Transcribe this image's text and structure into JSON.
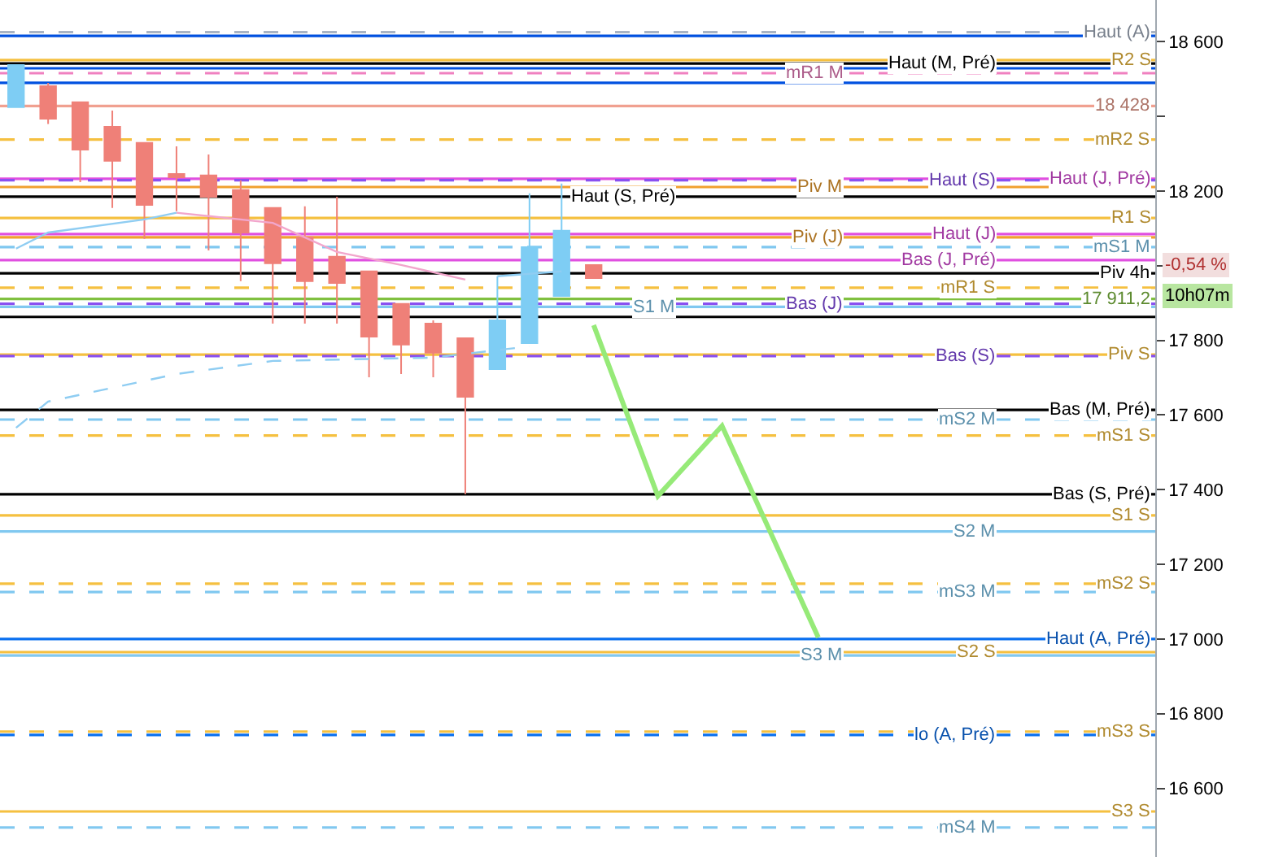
{
  "chart_data": {
    "type": "candlestick",
    "categories": [
      null,
      null,
      null,
      null,
      null,
      null,
      null,
      null,
      null,
      null,
      null,
      null,
      null,
      null,
      null,
      null,
      null,
      null,
      null,
      null,
      null,
      null,
      null,
      null,
      null,
      null,
      null,
      null,
      null,
      null,
      null,
      null,
      null,
      null,
      null,
      null
    ],
    "ohlc": [
      [
        18425,
        18538,
        18425,
        18538
      ],
      [
        18481,
        18490,
        18380,
        18394
      ],
      [
        18438,
        18440,
        18224,
        18311
      ],
      [
        18372,
        18416,
        18155,
        18281
      ],
      [
        18329,
        18329,
        18072,
        18163
      ],
      [
        18246,
        18320,
        18146,
        18237
      ],
      [
        18242,
        18298,
        18041,
        18185
      ],
      [
        18203,
        18229,
        17959,
        18089
      ],
      [
        18155,
        18155,
        17845,
        18007
      ],
      [
        18076,
        18159,
        17845,
        17959
      ],
      [
        18024,
        18185,
        17845,
        17954
      ],
      [
        17985,
        17985,
        17701,
        17810
      ],
      [
        17898,
        17898,
        17710,
        17789
      ],
      [
        17845,
        17854,
        17701,
        17767
      ],
      [
        17806,
        17806,
        17388,
        17649
      ],
      [
        17723,
        17972,
        17723,
        17854
      ],
      [
        17793,
        18194,
        17793,
        18050
      ],
      [
        17919,
        18220,
        17919,
        18094
      ],
      [
        18002,
        18002,
        17967,
        17967
      ],
      null,
      null,
      null,
      null,
      null,
      null,
      null,
      null,
      null,
      null,
      null,
      null,
      null,
      null,
      null,
      null,
      null
    ],
    "colors": [
      "#7ecdf4",
      "#ef8078",
      "#ef8078",
      "#ef8078",
      "#ef8078",
      "#ef8078",
      "#ef8078",
      "#ef8078",
      "#ef8078",
      "#ef8078",
      "#ef8078",
      "#ef8078",
      "#ef8078",
      "#ef8078",
      "#ef8078",
      "#7ecdf4",
      "#7ecdf4",
      "#7ecdf4",
      "#ef8078",
      null,
      null,
      null,
      null,
      null,
      null,
      null,
      null,
      null,
      null,
      null,
      null,
      null,
      null,
      null,
      null,
      null
    ],
    "series": [
      {
        "type": "line",
        "color": "#8fcdf2",
        "values": [
          18046,
          18089,
          null,
          null,
          18124,
          18142,
          null,
          null,
          null,
          null,
          null,
          null,
          null,
          null,
          null,
          null,
          null,
          null,
          null,
          null,
          null,
          null,
          null,
          null,
          null,
          null,
          null,
          null,
          null,
          null,
          null,
          null,
          null,
          null,
          null,
          null
        ]
      },
      {
        "type": "line",
        "color": "#8fcdf2",
        "values": [
          null,
          null,
          null,
          null,
          null,
          null,
          null,
          null,
          null,
          null,
          null,
          null,
          null,
          null,
          null,
          17972,
          null,
          17985,
          null,
          null,
          null,
          null,
          null,
          null,
          null,
          null,
          null,
          null,
          null,
          null,
          null,
          null,
          null,
          null,
          null,
          null
        ]
      },
      {
        "type": "line",
        "color": "#f2a6cc",
        "values": [
          null,
          null,
          null,
          null,
          null,
          18142,
          null,
          null,
          18115,
          null,
          18037,
          null,
          18002,
          null,
          17963,
          null,
          null,
          null,
          null,
          null,
          null,
          null,
          null,
          null,
          null,
          null,
          null,
          null,
          null,
          null,
          null,
          null,
          null,
          null,
          null,
          null
        ]
      },
      {
        "type": "line",
        "color": "#8fcdf2",
        "line_style": "dashed",
        "values": [
          17566,
          17636,
          null,
          null,
          null,
          17710,
          null,
          null,
          17745,
          null,
          null,
          null,
          null,
          17754,
          null,
          null,
          17784,
          null,
          null,
          null,
          null,
          null,
          null,
          null,
          null,
          null,
          null,
          null,
          null,
          null,
          null,
          null,
          null,
          null,
          null,
          null
        ]
      },
      {
        "type": "line",
        "color": "#96ea78",
        "values": [
          null,
          null,
          null,
          null,
          null,
          null,
          null,
          null,
          null,
          null,
          null,
          null,
          null,
          null,
          null,
          null,
          null,
          null,
          17841,
          null,
          17383,
          null,
          17571,
          null,
          null,
          17004,
          null,
          null,
          null,
          null,
          null,
          null,
          null,
          null,
          null,
          null
        ]
      }
    ],
    "ref_lines": [
      {
        "axis": "y",
        "value": 18626,
        "label": "Haut (A)",
        "color": "#a9b4c4",
        "line_style": "dashed"
      },
      {
        "axis": "y",
        "value": 18616,
        "label": null,
        "color": "#0050e0"
      },
      {
        "axis": "y",
        "value": 18551,
        "label": "R2 S",
        "color": "#f5c040"
      },
      {
        "axis": "y",
        "value": 18542,
        "label": "Haut (M, Pré)",
        "color": "#000000"
      },
      {
        "axis": "y",
        "value": 18529,
        "label": null,
        "color": "#0050e0"
      },
      {
        "axis": "y",
        "value": 18516,
        "label": "mR1 M",
        "color": "#f080c0",
        "line_style": "dashed"
      },
      {
        "axis": "y",
        "value": 18490,
        "label": null,
        "color": "#0050e0"
      },
      {
        "axis": "y",
        "value": 18428,
        "label": "18 428",
        "color": "#f0a090"
      },
      {
        "axis": "y",
        "value": 18338,
        "label": "mR2 S",
        "color": "#f5c040",
        "line_style": "dashed"
      },
      {
        "axis": "y",
        "value": 18233,
        "label": "Haut (J, Pré)",
        "color": "#e050e0"
      },
      {
        "axis": "y",
        "value": 18229,
        "label": "Haut (S)",
        "color": "#8a50f0",
        "line_style": "dashed"
      },
      {
        "axis": "y",
        "value": 18211,
        "label": "Piv M",
        "color": "#f0a030"
      },
      {
        "axis": "y",
        "value": 18185,
        "label": "Haut (S, Pré)",
        "color": "#000000"
      },
      {
        "axis": "y",
        "value": 18128,
        "label": "R1 S",
        "color": "#f5c040"
      },
      {
        "axis": "y",
        "value": 18085,
        "label": "Haut (J)",
        "color": "#e050e0"
      },
      {
        "axis": "y",
        "value": 18076,
        "label": "Piv (J)",
        "color": "#f0a030"
      },
      {
        "axis": "y",
        "value": 18050,
        "label": "mS1 M",
        "color": "#80c8f0",
        "line_style": "dashed"
      },
      {
        "axis": "y",
        "value": 18015,
        "label": "Bas (J, Pré)",
        "color": "#e050e0"
      },
      {
        "axis": "y",
        "value": 17980,
        "label": "Piv 4h",
        "color": "#000000"
      },
      {
        "axis": "y",
        "value": 17941,
        "label": "mR1 S",
        "color": "#f5c040",
        "line_style": "dashed"
      },
      {
        "axis": "y",
        "value": 17911.2,
        "label": "17 911,2",
        "color": "#80c040"
      },
      {
        "axis": "y",
        "value": 17898,
        "label": "Bas (J)",
        "color": "#8a50f0",
        "line_style": "dashed"
      },
      {
        "axis": "y",
        "value": 17890,
        "label": "S1 M",
        "color": "#80c8f0"
      },
      {
        "axis": "y",
        "value": 17863,
        "label": null,
        "color": "#000000"
      },
      {
        "axis": "y",
        "value": 17762,
        "label": "Piv S",
        "color": "#f5c040"
      },
      {
        "axis": "y",
        "value": 17758,
        "label": "Bas (S)",
        "color": "#8a50f0",
        "line_style": "dashed"
      },
      {
        "axis": "y",
        "value": 17614,
        "label": "Bas (M, Pré)",
        "color": "#000000"
      },
      {
        "axis": "y",
        "value": 17588,
        "label": "mS2 M",
        "color": "#80c8f0",
        "line_style": "dashed"
      },
      {
        "axis": "y",
        "value": 17545,
        "label": "mS1 S",
        "color": "#f5c040",
        "line_style": "dashed"
      },
      {
        "axis": "y",
        "value": 17388,
        "label": "Bas (S, Pré)",
        "color": "#000000"
      },
      {
        "axis": "y",
        "value": 17331,
        "label": "S1 S",
        "color": "#f5c040"
      },
      {
        "axis": "y",
        "value": 17288,
        "label": "S2 M",
        "color": "#80c8f0"
      },
      {
        "axis": "y",
        "value": 17148,
        "label": "mS2 S",
        "color": "#f5c040",
        "line_style": "dashed"
      },
      {
        "axis": "y",
        "value": 17126,
        "label": "mS3 M",
        "color": "#80c8f0",
        "line_style": "dashed"
      },
      {
        "axis": "y",
        "value": 17000,
        "label": "Haut (A, Pré)",
        "color": "#0a70f0"
      },
      {
        "axis": "y",
        "value": 16965,
        "label": "S2 S",
        "color": "#f5c040"
      },
      {
        "axis": "y",
        "value": 16956,
        "label": "S3 M",
        "color": "#80c8f0"
      },
      {
        "axis": "y",
        "value": 16752,
        "label": "mS3 S",
        "color": "#f5c040",
        "line_style": "dashed"
      },
      {
        "axis": "y",
        "value": 16743,
        "label": "lo (A, Pré)",
        "color": "#0a70f0",
        "line_style": "dashed"
      },
      {
        "axis": "y",
        "value": 16538,
        "label": "S3 S",
        "color": "#f5c040"
      },
      {
        "axis": "y",
        "value": 16495,
        "label": "mS4 M",
        "color": "#80c8f0",
        "line_style": "dashed"
      }
    ],
    "annotations": [
      "-0,54 %",
      "10h07m"
    ],
    "ylim": [
      16416,
      18712
    ],
    "yticks": [
      {
        "value": 16600,
        "label": "16 600"
      },
      {
        "value": 16800,
        "label": "16 800"
      },
      {
        "value": 17000,
        "label": "17 000"
      },
      {
        "value": 17200,
        "label": "17 200"
      },
      {
        "value": 17400,
        "label": "17 400"
      },
      {
        "value": 17600,
        "label": "17 600"
      },
      {
        "value": 17800,
        "label": "17 800"
      },
      {
        "value": 18000,
        "label": null
      },
      {
        "value": 18200,
        "label": "18 200"
      },
      {
        "value": 18400,
        "label": null
      },
      {
        "value": 18600,
        "label": "18 600"
      }
    ],
    "tick_labels": "y",
    "grid": false
  }
}
